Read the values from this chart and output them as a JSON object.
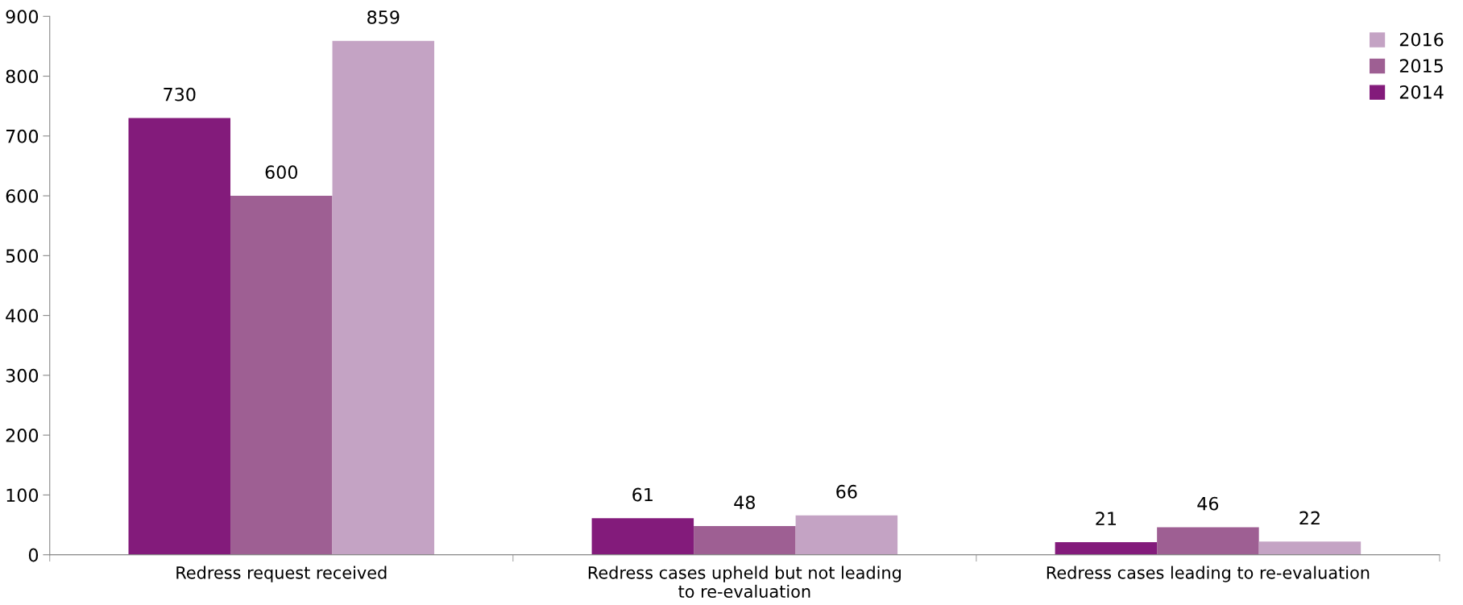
{
  "chart_data": {
    "type": "bar",
    "categories": [
      "Redress request received",
      "Redress cases upheld but not leading\nto re-evaluation",
      "Redress cases leading to re-evaluation"
    ],
    "series": [
      {
        "name": "2014",
        "color": "#831b7b",
        "values": [
          730,
          61,
          21
        ]
      },
      {
        "name": "2015",
        "color": "#9e5f93",
        "values": [
          600,
          48,
          46
        ]
      },
      {
        "name": "2016",
        "color": "#c4a3c4",
        "values": [
          859,
          66,
          22
        ]
      }
    ],
    "ylim": [
      0,
      900
    ],
    "yticks": [
      0,
      100,
      200,
      300,
      400,
      500,
      600,
      700,
      800,
      900
    ],
    "data_labels": true,
    "grid": false,
    "legend": "top right"
  }
}
